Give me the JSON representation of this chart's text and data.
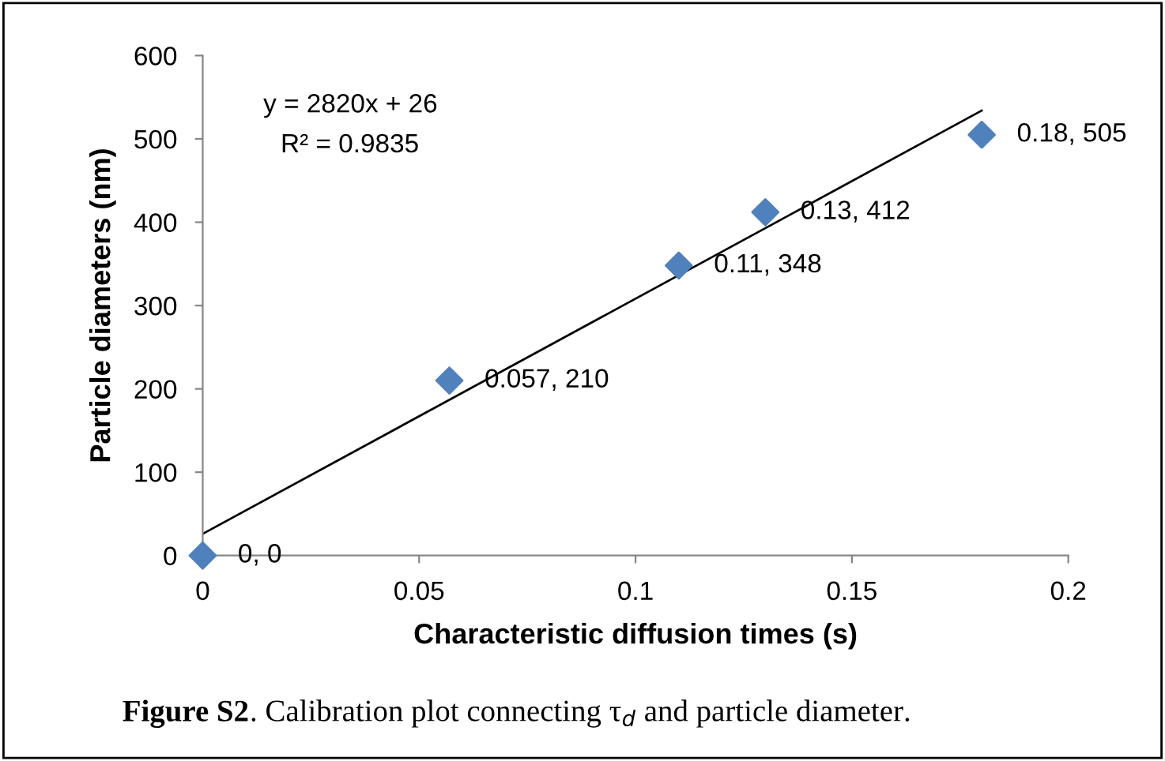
{
  "chart_data": {
    "type": "scatter",
    "xlabel": "Characteristic diffusion times (s)",
    "ylabel": "Particle diameters (nm)",
    "xlim": [
      0,
      0.2
    ],
    "xticks": [
      0,
      0.05,
      0.1,
      0.15,
      0.2
    ],
    "ylim": [
      0,
      600
    ],
    "yticks": [
      0,
      100,
      200,
      300,
      400,
      500,
      600
    ],
    "grid": false,
    "legend": false,
    "series": [
      {
        "color": "#4f81bd",
        "marker": "diamond",
        "x": [
          0,
          0.057,
          0.11,
          0.13,
          0.18
        ],
        "values": [
          0,
          210,
          348,
          412,
          505
        ],
        "value_labels": [
          "0, 0",
          "0.057, 210",
          "0.11, 348",
          "0.13, 412",
          "0.18, 505"
        ]
      },
      {
        "type": "line",
        "color": "#000000",
        "line_style": "solid",
        "marker": "none",
        "x": [
          0,
          0.18
        ],
        "values": [
          26,
          534
        ]
      }
    ],
    "annotations": [
      "y = 2820x + 26",
      "R² = 0.9835",
      "Figure S2",
      ". Calibration plot connecting τ$_{d}$ and particle diameter."
    ]
  }
}
